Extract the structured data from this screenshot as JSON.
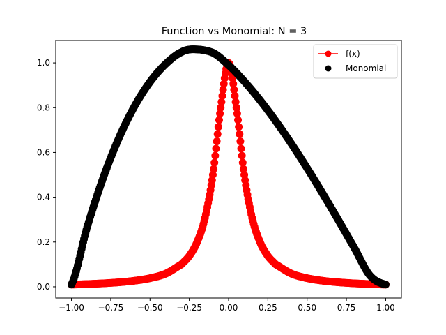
{
  "chart_data": {
    "type": "scatter",
    "title": "Function vs Monomial: N = 3",
    "xlabel": "",
    "ylabel": "",
    "xlim": [
      -1.1,
      1.1
    ],
    "ylim": [
      -0.05,
      1.1
    ],
    "grid": false,
    "legend_position": "top-right",
    "x_ticks": [
      -1.0,
      -0.75,
      -0.5,
      -0.25,
      0.0,
      0.25,
      0.5,
      0.75,
      1.0
    ],
    "x_tick_labels": [
      "−1.00",
      "−0.75",
      "−0.50",
      "−0.25",
      "0.00",
      "0.25",
      "0.50",
      "0.75",
      "1.00"
    ],
    "y_ticks": [
      0.0,
      0.2,
      0.4,
      0.6,
      0.8,
      1.0
    ],
    "y_tick_labels": [
      "0.0",
      "0.2",
      "0.4",
      "0.6",
      "0.8",
      "1.0"
    ],
    "series": [
      {
        "name": "f(x)",
        "color": "#ff0000",
        "marker": "line-with-circles",
        "x": [
          -1.0,
          -0.9,
          -0.8,
          -0.7,
          -0.6,
          -0.5,
          -0.4,
          -0.3,
          -0.25,
          -0.2,
          -0.15,
          -0.1,
          -0.05,
          0.0,
          0.05,
          0.1,
          0.15,
          0.2,
          0.25,
          0.3,
          0.4,
          0.5,
          0.6,
          0.7,
          0.8,
          0.9,
          1.0
        ],
        "y": [
          0.0099,
          0.0122,
          0.0154,
          0.02,
          0.027,
          0.0385,
          0.0588,
          0.1,
          0.1379,
          0.2,
          0.3077,
          0.5,
          0.8,
          1.0,
          0.8,
          0.5,
          0.3077,
          0.2,
          0.1379,
          0.1,
          0.0588,
          0.0385,
          0.027,
          0.02,
          0.0154,
          0.0122,
          0.0099
        ]
      },
      {
        "name": "Monomial",
        "color": "#000000",
        "marker": "circle",
        "x": [
          -1.0,
          -0.9,
          -0.8,
          -0.7,
          -0.6,
          -0.5,
          -0.4,
          -0.3,
          -0.22,
          -0.1,
          0.0,
          0.1,
          0.2,
          0.3,
          0.4,
          0.5,
          0.6,
          0.7,
          0.8,
          0.9,
          1.0
        ],
        "y": [
          0.0099,
          0.2663,
          0.4825,
          0.661,
          0.8043,
          0.9148,
          0.9953,
          1.048,
          1.0606,
          1.0454,
          0.9901,
          0.9172,
          0.8336,
          0.7403,
          0.6387,
          0.5298,
          0.4152,
          0.2962,
          0.1741,
          0.0502,
          0.0099
        ]
      }
    ]
  }
}
